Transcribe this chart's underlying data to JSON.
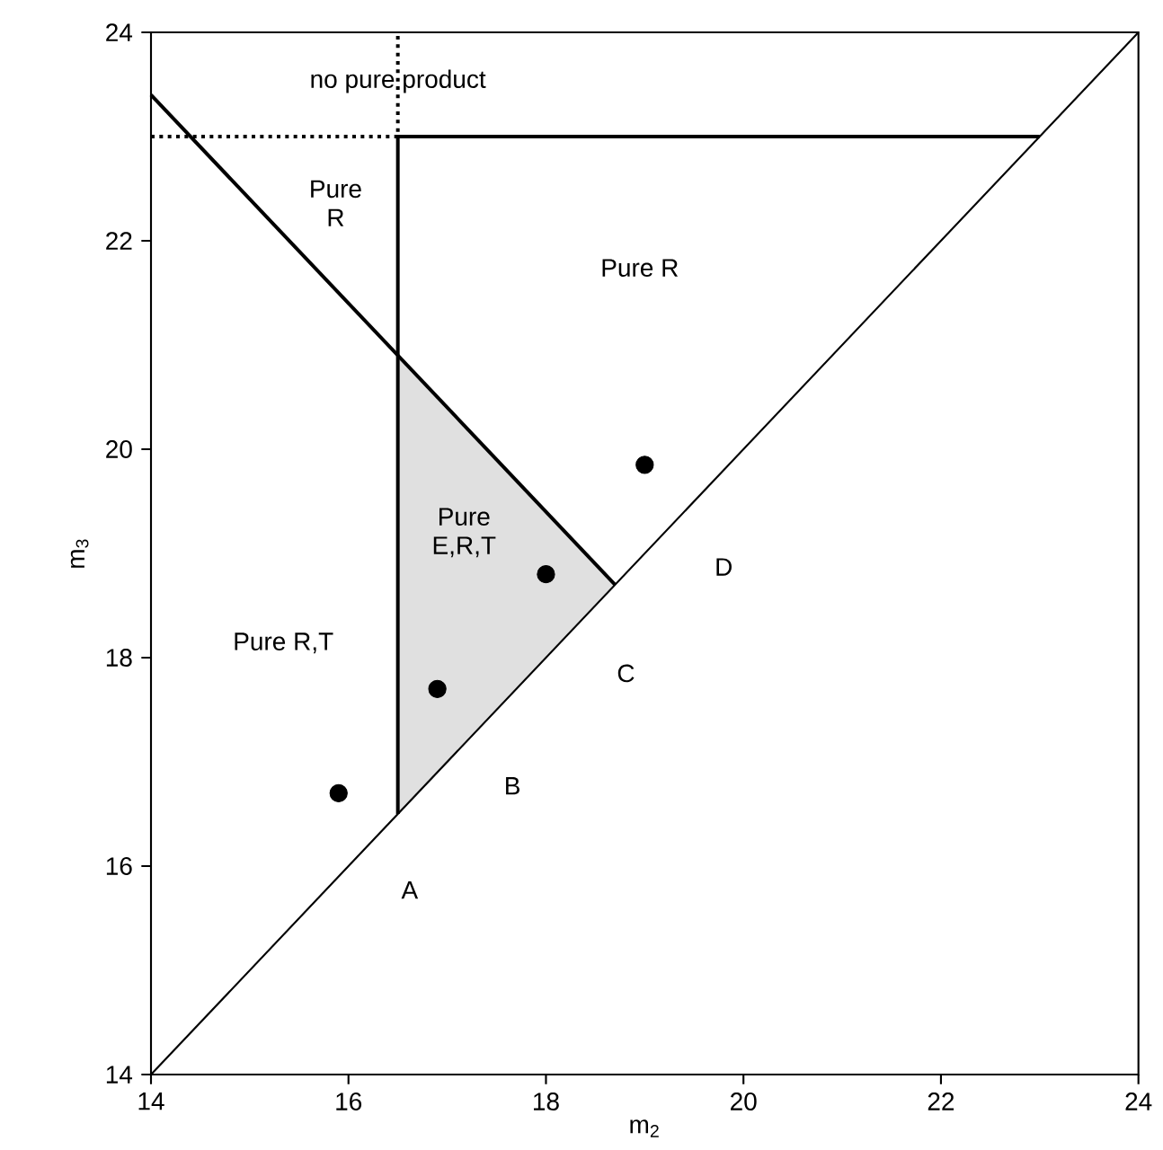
{
  "chart_data": {
    "type": "line",
    "xlabel": "m$_{2}$",
    "ylabel": "m$_{3}$",
    "xlim": [
      14,
      24
    ],
    "ylim": [
      14,
      24
    ],
    "xticks": [
      14,
      16,
      18,
      20,
      22,
      24
    ],
    "yticks": [
      14,
      16,
      18,
      20,
      22,
      24
    ],
    "series": [
      {
        "type": "area",
        "color": "#e0e0e0",
        "x": [
          16.5,
          16.5,
          18.7
        ],
        "values": [
          16.5,
          20.9,
          18.7
        ]
      },
      {
        "color": "#000000",
        "line_style": "solid",
        "marker": "none",
        "x": [
          14,
          24
        ],
        "values": [
          14,
          24
        ]
      },
      {
        "color": "#000000",
        "line_style": "solid",
        "marker": "none",
        "x": [
          14,
          18.7
        ],
        "values": [
          23.4,
          18.7
        ]
      },
      {
        "color": "#000000",
        "line_style": "solid",
        "marker": "none",
        "x": [
          16.5,
          16.5,
          23
        ],
        "values": [
          16.5,
          23,
          23
        ]
      },
      {
        "color": "#000000",
        "line_style": "dotted",
        "marker": "none",
        "x": [
          14,
          16.5,
          16.5
        ],
        "values": [
          23,
          23,
          24
        ]
      },
      {
        "type": "scatter",
        "color": "#000000",
        "marker": "circle",
        "x": [
          15.9,
          16.9,
          18.0,
          19.0
        ],
        "values": [
          16.7,
          17.7,
          18.8,
          19.85
        ]
      }
    ],
    "annotations": [
      "no pure product",
      "Pure R",
      "Pure R",
      "Pure E,R,T",
      "Pure R,T",
      "A",
      "B",
      "C",
      "D"
    ]
  }
}
